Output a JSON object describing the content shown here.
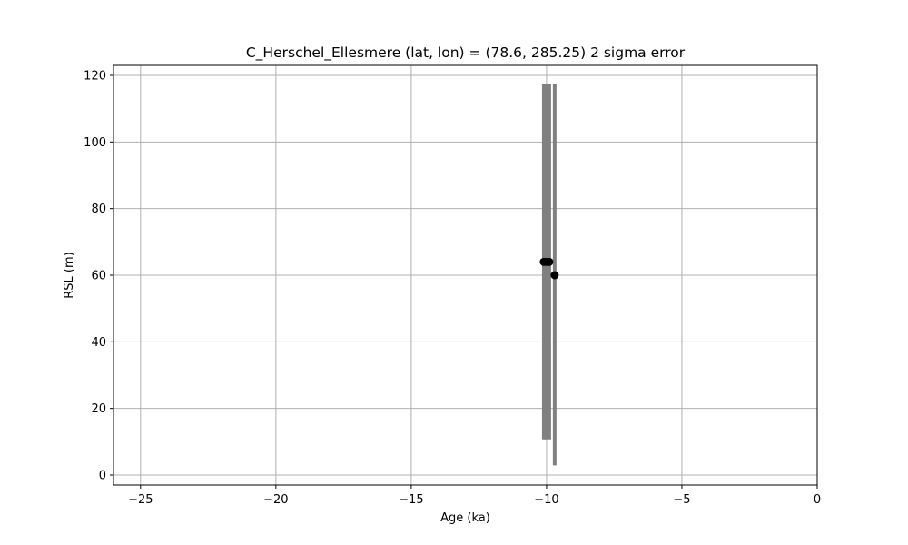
{
  "chart_data": {
    "type": "scatter",
    "title": "C_Herschel_Ellesmere (lat, lon) = (78.6, 285.25)  2 sigma error",
    "xlabel": "Age (ka)",
    "ylabel": "RSL (m)",
    "xlim": [
      -26,
      0
    ],
    "ylim": [
      -3,
      123
    ],
    "xticks": [
      -25,
      -20,
      -15,
      -10,
      -5,
      0
    ],
    "yticks": [
      0,
      20,
      40,
      60,
      80,
      100,
      120
    ],
    "xtick_labels": [
      "−25",
      "−20",
      "−15",
      "−10",
      "−5",
      "0"
    ],
    "ytick_labels": [
      "0",
      "20",
      "40",
      "60",
      "80",
      "100",
      "120"
    ],
    "grid": true,
    "colors": {
      "points": "#000000",
      "error_bars": "#808080",
      "grid": "#b0b0b0"
    },
    "series": [
      {
        "points": [
          {
            "x": -10.1,
            "y": 64,
            "y_low": 10.7,
            "y_high": 117.3
          },
          {
            "x": -10.0,
            "y": 64,
            "y_low": 10.7,
            "y_high": 117.3
          },
          {
            "x": -9.9,
            "y": 64,
            "y_low": 10.7,
            "y_high": 117.3
          },
          {
            "x": -9.7,
            "y": 60,
            "y_low": 2.9,
            "y_high": 117.3
          }
        ]
      }
    ]
  }
}
